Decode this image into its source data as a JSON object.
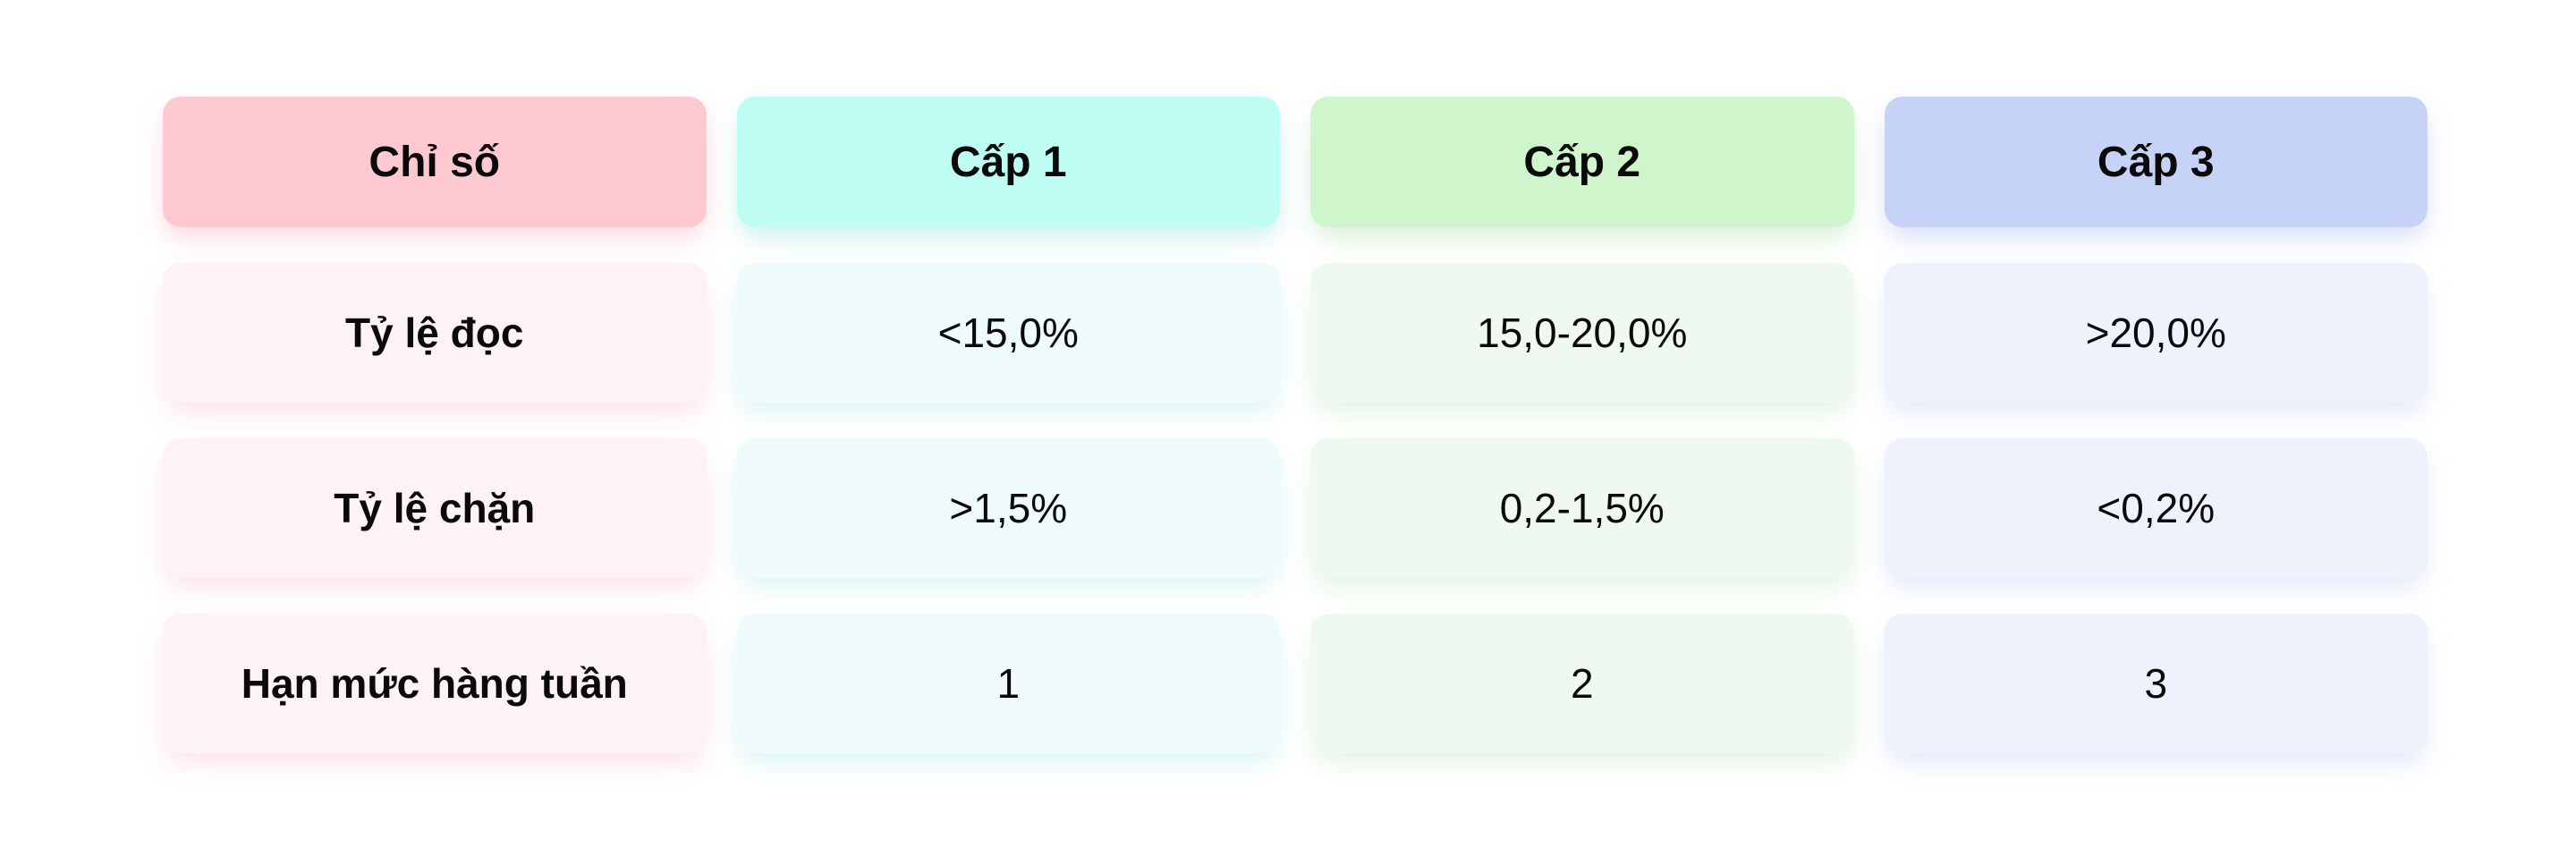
{
  "page": {
    "background": "#ffffff"
  },
  "colors": {
    "header_pink": "#ffc9d2",
    "header_cyan": "#befdf4",
    "header_green": "#cff5cd",
    "header_blue": "#c6d3f7",
    "cell_pink": "#fdf2f4",
    "cell_cyan": "#effbfa",
    "cell_green": "#f0f9ef",
    "cell_blue": "#eef2fc",
    "text": "#0a0a0a"
  },
  "table": {
    "columns": [
      {
        "label": "Chỉ số"
      },
      {
        "label": "Cấp 1"
      },
      {
        "label": "Cấp 2"
      },
      {
        "label": "Cấp 3"
      }
    ],
    "rows": [
      {
        "label": "Tỷ lệ đọc",
        "values": [
          "<15,0%",
          "15,0-20,0%",
          ">20,0%"
        ]
      },
      {
        "label": "Tỷ lệ chặn",
        "values": [
          ">1,5%",
          "0,2-1,5%",
          "<0,2%"
        ]
      },
      {
        "label": "Hạn mức hàng tuần",
        "values": [
          "1",
          "2",
          "3"
        ]
      }
    ]
  },
  "chart_data": {
    "type": "table",
    "columns": [
      "Chỉ số",
      "Cấp 1",
      "Cấp 2",
      "Cấp 3"
    ],
    "rows": [
      [
        "Tỷ lệ đọc",
        "<15,0%",
        "15,0-20,0%",
        ">20,0%"
      ],
      [
        "Tỷ lệ chặn",
        ">1,5%",
        "0,2-1,5%",
        "<0,2%"
      ],
      [
        "Hạn mức hàng tuần",
        "1",
        "2",
        "3"
      ]
    ]
  }
}
